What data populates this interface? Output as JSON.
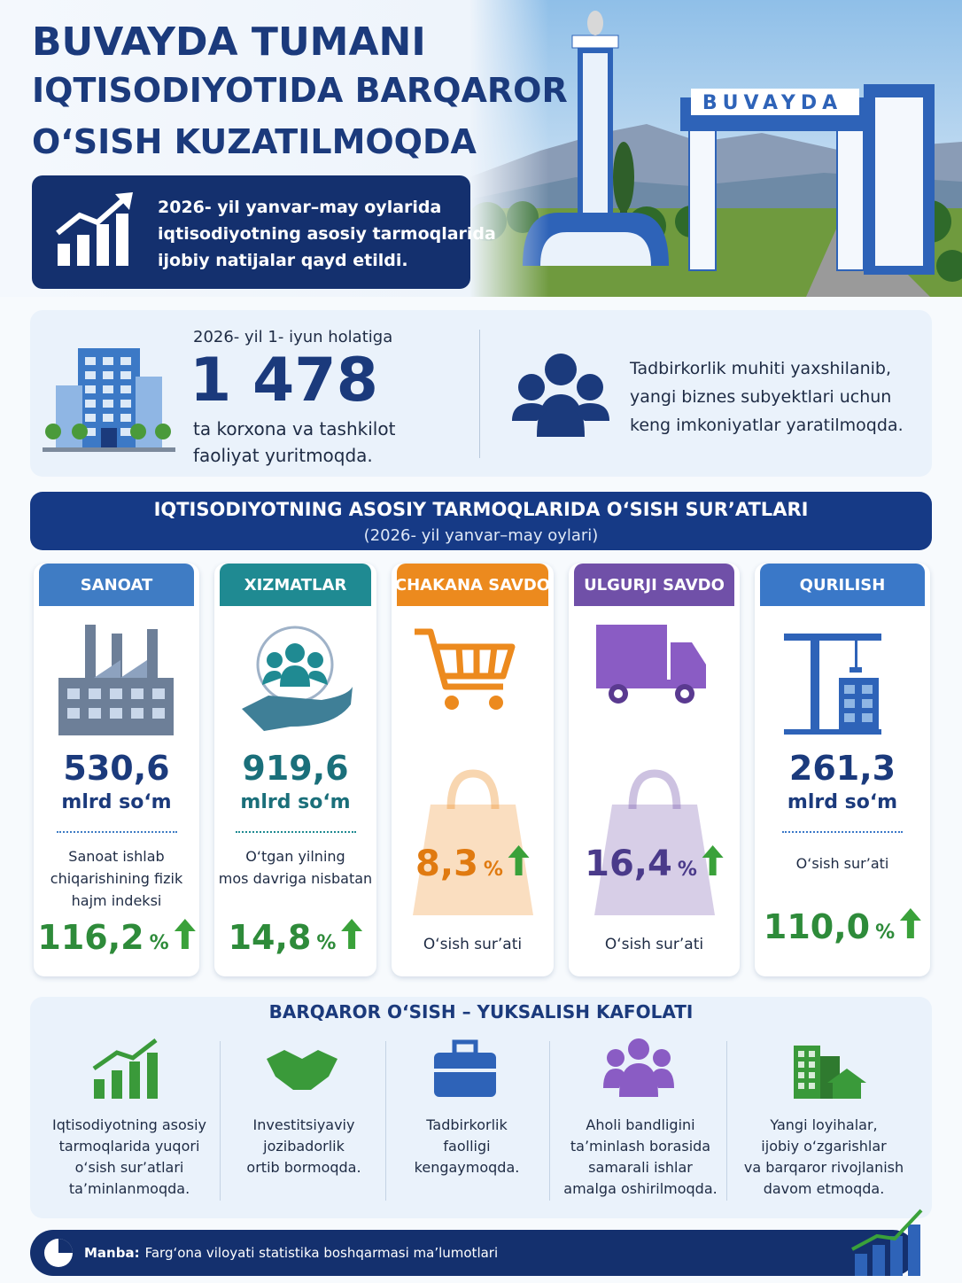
{
  "header": {
    "title_lines": [
      "BUVAYDA TUMANI",
      "IQTISODIYOTIDA BARQAROR",
      "O‘SISH KUZATILMOQDA"
    ],
    "intro_lines": [
      "2026- yil yanvar–may oylarida",
      "iqtisodiyotning asosiy tarmoqlarida",
      "ijobiy natijalar qayd etildi."
    ],
    "sign": "BUVAYDA"
  },
  "summary": {
    "date": "2026- yil 1- iyun holatiga",
    "count": "1 478",
    "desc_lines": [
      "ta korxona va tashkilot",
      "faoliyat yuritmoqda."
    ],
    "note_lines": [
      "Tadbirkorlik muhiti yaxshilanib,",
      "yangi biznes subyektlari uchun",
      "keng imkoniyatlar yaratilmoqda."
    ]
  },
  "section": {
    "title": "IQTISODIYOTNING ASOSIY TARMOQLARIDA O‘SISH SUR’ATLARI",
    "subtitle": "(2026- yil yanvar–may oylari)"
  },
  "sectors": [
    {
      "name": "SANOAT",
      "color": "#3f7cc4",
      "amount": "530,6",
      "unit": "mlrd so‘m",
      "note_lines": [
        "Sanoat ishlab",
        "chiqarishining fizik",
        "hajm indeksi"
      ],
      "rate": "116,2",
      "percent": "%"
    },
    {
      "name": "XIZMATLAR",
      "color": "#1f8a92",
      "amount": "919,6",
      "unit": "mlrd so‘m",
      "note_lines": [
        "O‘tgan yilning",
        "mos davriga nisbatan"
      ],
      "rate": "14,8",
      "percent": "%"
    },
    {
      "name": "CHAKANA SAVDO",
      "color": "#ec8a1e",
      "note_lines": [
        "O‘sish sur’ati"
      ],
      "rate": "8,3",
      "percent": "%"
    },
    {
      "name": "ULGURJI SAVDO",
      "color": "#7050a8",
      "note_lines": [
        "O‘sish sur’ati"
      ],
      "rate": "16,4",
      "percent": "%"
    },
    {
      "name": "QURILISH",
      "color": "#3a78c8",
      "amount": "261,3",
      "unit": "mlrd so‘m",
      "note_lines": [
        "O‘sish sur’ati"
      ],
      "rate": "110,0",
      "percent": "%"
    }
  ],
  "benefits": {
    "title": "BARQAROR O‘SISH – YUKSALISH KAFOLATI",
    "items": [
      {
        "lines": [
          "Iqtisodiyotning asosiy",
          "tarmoqlarida yuqori",
          "o‘sish sur’atlari",
          "ta’minlanmoqda."
        ]
      },
      {
        "lines": [
          "Investitsiyaviy",
          "jozibadorlik",
          "ortib bormoqda."
        ]
      },
      {
        "lines": [
          "Tadbirkorlik",
          "faolligi",
          "kengaymoqda."
        ]
      },
      {
        "lines": [
          "Aholi bandligini",
          "ta’minlash borasida",
          "samarali ishlar",
          "amalga oshirilmoqda."
        ]
      },
      {
        "lines": [
          "Yangi loyihalar,",
          "ijobiy o‘zgarishlar",
          "va barqaror rivojlanish",
          "davom etmoqda."
        ]
      }
    ]
  },
  "source": {
    "label": "Manba:",
    "text": "Farg‘ona viloyati statistika boshqarmasi ma’lumotlari"
  }
}
